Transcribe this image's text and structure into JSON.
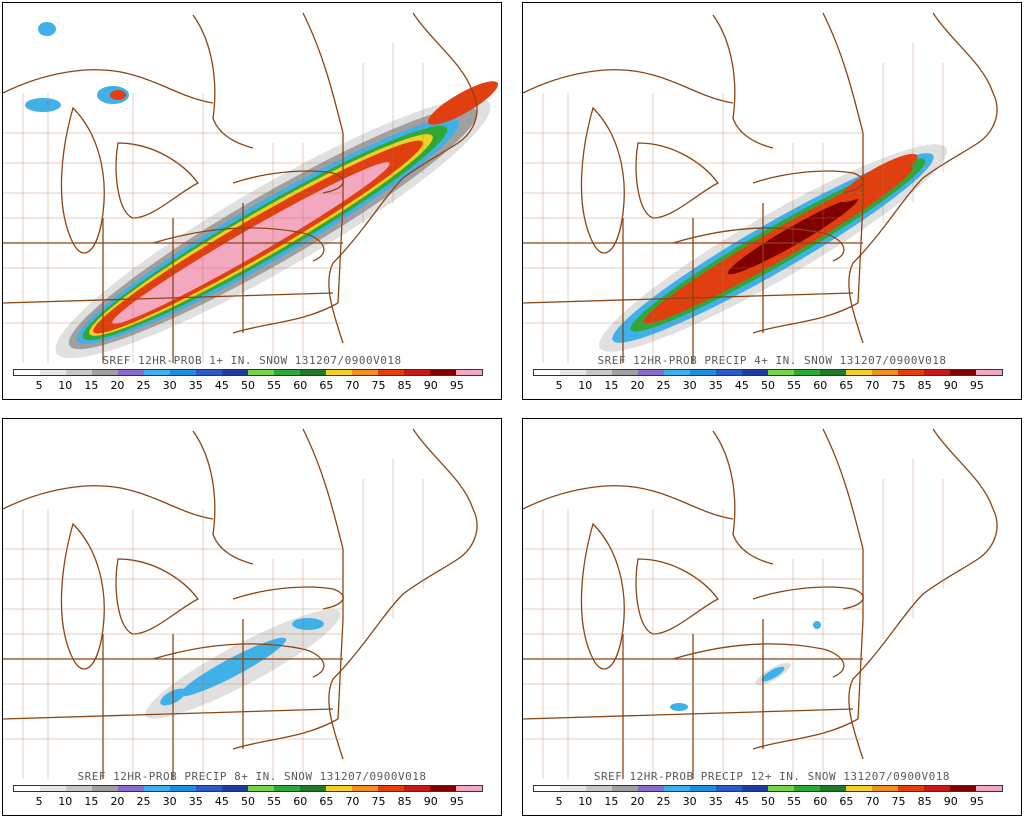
{
  "panels": [
    {
      "title": "SREF 12HR-PROB 1+ IN. SNOW 131207/0900V018",
      "snow_threshold": "1+ IN."
    },
    {
      "title": "SREF 12HR-PROB PRECIP 4+ IN. SNOW 131207/0900V018",
      "snow_threshold": "4+ IN."
    },
    {
      "title": "SREF 12HR-PROB PRECIP 8+ IN. SNOW 131207/0900V018",
      "snow_threshold": "8+ IN."
    },
    {
      "title": "SREF 12HR-PROB PRECIP 12+ IN. SNOW 131207/0900V018",
      "snow_threshold": "12+ IN."
    }
  ],
  "legend": {
    "ticks": [
      "5",
      "10",
      "15",
      "20",
      "25",
      "30",
      "35",
      "45",
      "50",
      "55",
      "60",
      "65",
      "70",
      "75",
      "85",
      "90",
      "95"
    ],
    "colors": [
      "#ffffff",
      "#e6e6e6",
      "#c8c8c8",
      "#a0a0a0",
      "#8a6ccc",
      "#3fb0e8",
      "#1f8ee0",
      "#2a5cc8",
      "#1e3c9c",
      "#76d24a",
      "#2fa83a",
      "#1e7a2a",
      "#f0d020",
      "#f09020",
      "#e04010",
      "#c81818",
      "#800000",
      "#f4a8c0"
    ]
  },
  "colors": {
    "border": "#8b4513",
    "water": "#ffffff"
  }
}
